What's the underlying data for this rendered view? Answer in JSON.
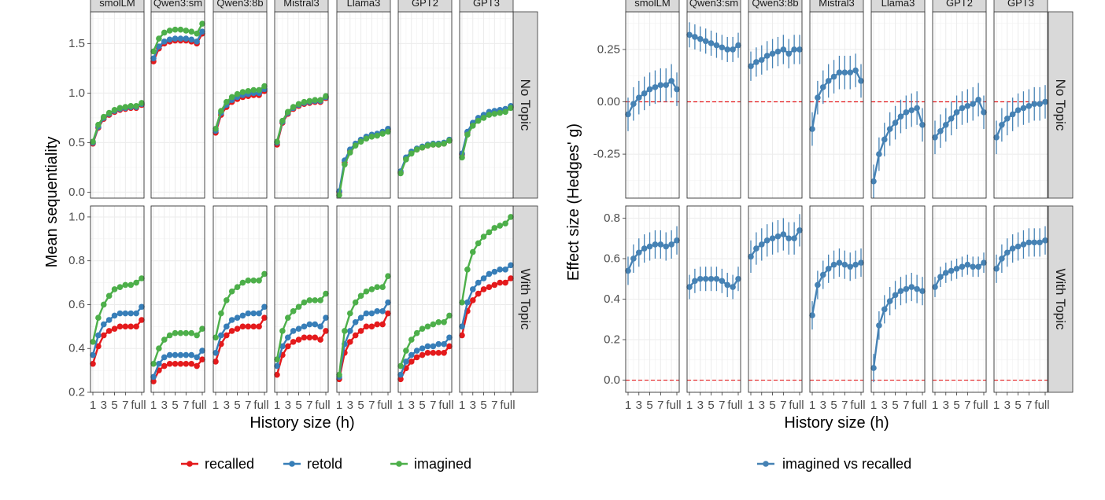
{
  "chart_data": [
    {
      "type": "line",
      "facet_columns": [
        "smolLM",
        "Qwen3:sm",
        "Qwen3:8b",
        "Mistral3",
        "Llama3",
        "GPT2",
        "GPT3"
      ],
      "facet_rows": [
        "No Topic",
        "With Topic"
      ],
      "xlabel": "History size (h)",
      "ylabel": "Mean sequentiality",
      "x_ticks": [
        "1",
        "3",
        "5",
        "7",
        "full"
      ],
      "row_ylim": [
        [
          -0.06,
          1.82
        ],
        [
          0.2,
          1.05
        ]
      ],
      "row_yticks": [
        [
          "0.0",
          "0.5",
          "1.0",
          "1.5"
        ],
        [
          "0.2",
          "0.4",
          "0.6",
          "0.8",
          "1.0"
        ]
      ],
      "series_colors": {
        "recalled": "#E41A1C",
        "retold": "#377EB8",
        "imagined": "#4DAF4A"
      },
      "legend": {
        "position": "bottom",
        "entries": [
          "recalled",
          "retold",
          "imagined"
        ]
      },
      "panels": [
        [
          {
            "recalled": [
              0.49,
              0.65,
              0.74,
              0.78,
              0.81,
              0.83,
              0.84,
              0.85,
              0.85,
              0.88
            ],
            "retold": [
              0.5,
              0.66,
              0.75,
              0.79,
              0.82,
              0.84,
              0.85,
              0.86,
              0.86,
              0.89
            ],
            "imagined": [
              0.51,
              0.68,
              0.76,
              0.8,
              0.83,
              0.85,
              0.86,
              0.87,
              0.87,
              0.9
            ]
          },
          {
            "recalled": [
              1.32,
              1.45,
              1.5,
              1.52,
              1.53,
              1.53,
              1.53,
              1.52,
              1.5,
              1.6
            ],
            "retold": [
              1.35,
              1.47,
              1.52,
              1.54,
              1.55,
              1.55,
              1.55,
              1.54,
              1.52,
              1.62
            ],
            "imagined": [
              1.42,
              1.55,
              1.61,
              1.63,
              1.64,
              1.64,
              1.63,
              1.62,
              1.6,
              1.7
            ]
          },
          {
            "recalled": [
              0.6,
              0.78,
              0.86,
              0.91,
              0.94,
              0.96,
              0.97,
              0.98,
              0.98,
              1.02
            ],
            "retold": [
              0.62,
              0.8,
              0.88,
              0.93,
              0.96,
              0.98,
              0.99,
              1.0,
              1.0,
              1.04
            ],
            "imagined": [
              0.64,
              0.82,
              0.91,
              0.96,
              0.99,
              1.01,
              1.02,
              1.03,
              1.03,
              1.07
            ]
          },
          {
            "recalled": [
              0.48,
              0.7,
              0.79,
              0.84,
              0.87,
              0.89,
              0.9,
              0.91,
              0.91,
              0.95
            ],
            "retold": [
              0.5,
              0.71,
              0.8,
              0.85,
              0.88,
              0.9,
              0.91,
              0.92,
              0.92,
              0.96
            ],
            "imagined": [
              0.51,
              0.72,
              0.81,
              0.86,
              0.89,
              0.91,
              0.92,
              0.93,
              0.93,
              0.97
            ]
          },
          {
            "recalled": [
              0.0,
              0.3,
              0.42,
              0.48,
              0.52,
              0.55,
              0.57,
              0.58,
              0.6,
              0.63
            ],
            "retold": [
              0.01,
              0.32,
              0.43,
              0.49,
              0.53,
              0.56,
              0.58,
              0.59,
              0.61,
              0.64
            ],
            "imagined": [
              -0.03,
              0.28,
              0.4,
              0.47,
              0.51,
              0.54,
              0.56,
              0.57,
              0.59,
              0.61
            ]
          },
          {
            "recalled": [
              0.2,
              0.34,
              0.4,
              0.43,
              0.45,
              0.47,
              0.48,
              0.48,
              0.49,
              0.52
            ],
            "retold": [
              0.21,
              0.35,
              0.41,
              0.44,
              0.46,
              0.48,
              0.49,
              0.49,
              0.5,
              0.53
            ],
            "imagined": [
              0.19,
              0.33,
              0.39,
              0.43,
              0.45,
              0.47,
              0.48,
              0.48,
              0.49,
              0.52
            ]
          },
          {
            "recalled": [
              0.38,
              0.6,
              0.69,
              0.74,
              0.77,
              0.8,
              0.81,
              0.82,
              0.83,
              0.86
            ],
            "retold": [
              0.39,
              0.61,
              0.7,
              0.75,
              0.78,
              0.81,
              0.82,
              0.83,
              0.84,
              0.87
            ],
            "imagined": [
              0.35,
              0.58,
              0.67,
              0.72,
              0.75,
              0.78,
              0.79,
              0.8,
              0.81,
              0.85
            ]
          }
        ],
        [
          {
            "recalled": [
              0.33,
              0.41,
              0.46,
              0.48,
              0.49,
              0.5,
              0.5,
              0.5,
              0.5,
              0.53
            ],
            "retold": [
              0.37,
              0.46,
              0.51,
              0.53,
              0.55,
              0.56,
              0.56,
              0.56,
              0.56,
              0.59
            ],
            "imagined": [
              0.43,
              0.54,
              0.6,
              0.64,
              0.67,
              0.68,
              0.69,
              0.69,
              0.7,
              0.72
            ]
          },
          {
            "recalled": [
              0.25,
              0.3,
              0.32,
              0.33,
              0.33,
              0.33,
              0.33,
              0.33,
              0.32,
              0.35
            ],
            "retold": [
              0.27,
              0.33,
              0.36,
              0.37,
              0.37,
              0.37,
              0.37,
              0.37,
              0.36,
              0.39
            ],
            "imagined": [
              0.33,
              0.4,
              0.44,
              0.46,
              0.47,
              0.47,
              0.47,
              0.47,
              0.46,
              0.49
            ]
          },
          {
            "recalled": [
              0.34,
              0.42,
              0.46,
              0.48,
              0.49,
              0.5,
              0.5,
              0.5,
              0.5,
              0.54
            ],
            "retold": [
              0.38,
              0.46,
              0.5,
              0.53,
              0.54,
              0.55,
              0.56,
              0.56,
              0.56,
              0.59
            ],
            "imagined": [
              0.45,
              0.56,
              0.62,
              0.66,
              0.68,
              0.7,
              0.71,
              0.71,
              0.71,
              0.74
            ]
          },
          {
            "recalled": [
              0.28,
              0.37,
              0.41,
              0.43,
              0.44,
              0.45,
              0.45,
              0.45,
              0.44,
              0.48
            ],
            "retold": [
              0.32,
              0.41,
              0.45,
              0.48,
              0.49,
              0.5,
              0.51,
              0.51,
              0.5,
              0.54
            ],
            "imagined": [
              0.35,
              0.48,
              0.54,
              0.57,
              0.59,
              0.61,
              0.62,
              0.62,
              0.62,
              0.65
            ]
          },
          {
            "recalled": [
              0.26,
              0.38,
              0.43,
              0.46,
              0.48,
              0.5,
              0.5,
              0.51,
              0.51,
              0.56
            ],
            "retold": [
              0.27,
              0.42,
              0.48,
              0.52,
              0.54,
              0.56,
              0.56,
              0.57,
              0.57,
              0.61
            ],
            "imagined": [
              0.28,
              0.48,
              0.56,
              0.61,
              0.64,
              0.66,
              0.67,
              0.68,
              0.68,
              0.73
            ]
          },
          {
            "recalled": [
              0.26,
              0.31,
              0.34,
              0.36,
              0.37,
              0.38,
              0.38,
              0.38,
              0.38,
              0.41
            ],
            "retold": [
              0.28,
              0.34,
              0.37,
              0.39,
              0.4,
              0.41,
              0.41,
              0.42,
              0.42,
              0.45
            ],
            "imagined": [
              0.32,
              0.39,
              0.44,
              0.47,
              0.49,
              0.5,
              0.51,
              0.52,
              0.52,
              0.55
            ]
          },
          {
            "recalled": [
              0.46,
              0.57,
              0.62,
              0.65,
              0.67,
              0.68,
              0.69,
              0.7,
              0.7,
              0.72
            ],
            "retold": [
              0.5,
              0.61,
              0.67,
              0.7,
              0.72,
              0.74,
              0.75,
              0.76,
              0.76,
              0.78
            ],
            "imagined": [
              0.61,
              0.76,
              0.84,
              0.88,
              0.91,
              0.93,
              0.95,
              0.96,
              0.97,
              1.0
            ]
          }
        ]
      ]
    },
    {
      "type": "line",
      "facet_columns": [
        "smolLM",
        "Qwen3:sm",
        "Qwen3:8b",
        "Mistral3",
        "Llama3",
        "GPT2",
        "GPT3"
      ],
      "facet_rows": [
        "No Topic",
        "With Topic"
      ],
      "xlabel": "History size (h)",
      "ylabel": "Effect size (Hedges' g)",
      "x_ticks": [
        "1",
        "3",
        "5",
        "7",
        "full"
      ],
      "row_ylim": [
        [
          -0.46,
          0.43
        ],
        [
          -0.06,
          0.86
        ]
      ],
      "row_yticks": [
        [
          "-0.25",
          "0.00",
          "0.25"
        ],
        [
          "0.0",
          "0.2",
          "0.4",
          "0.6",
          "0.8"
        ]
      ],
      "reference_line": {
        "y": 0,
        "style": "dashed",
        "color": "#E41A1C"
      },
      "series_colors": {
        "imagined vs recalled": "#4682B4"
      },
      "legend": {
        "position": "bottom",
        "entries": [
          "imagined vs recalled"
        ]
      },
      "panels": [
        [
          {
            "g": [
              -0.06,
              -0.01,
              0.02,
              0.04,
              0.06,
              0.07,
              0.08,
              0.08,
              0.1,
              0.06
            ],
            "err": 0.08
          },
          {
            "g": [
              0.32,
              0.31,
              0.3,
              0.29,
              0.28,
              0.27,
              0.26,
              0.25,
              0.25,
              0.27
            ],
            "err": 0.06
          },
          {
            "g": [
              0.17,
              0.19,
              0.2,
              0.22,
              0.23,
              0.24,
              0.25,
              0.23,
              0.25,
              0.25
            ],
            "err": 0.07
          },
          {
            "g": [
              -0.13,
              0.02,
              0.07,
              0.1,
              0.12,
              0.14,
              0.14,
              0.14,
              0.15,
              0.1
            ],
            "err": 0.08
          },
          {
            "g": [
              -0.38,
              -0.25,
              -0.18,
              -0.13,
              -0.1,
              -0.07,
              -0.05,
              -0.04,
              -0.03,
              -0.11
            ],
            "err": 0.08
          },
          {
            "g": [
              -0.17,
              -0.14,
              -0.11,
              -0.08,
              -0.05,
              -0.03,
              -0.02,
              -0.01,
              0.01,
              -0.05
            ],
            "err": 0.08
          },
          {
            "g": [
              -0.17,
              -0.11,
              -0.08,
              -0.06,
              -0.04,
              -0.03,
              -0.02,
              -0.01,
              -0.01,
              0.0
            ],
            "err": 0.08
          }
        ],
        [
          {
            "g": [
              0.54,
              0.6,
              0.63,
              0.65,
              0.66,
              0.67,
              0.67,
              0.66,
              0.67,
              0.69
            ],
            "err": 0.07
          },
          {
            "g": [
              0.46,
              0.49,
              0.5,
              0.5,
              0.5,
              0.5,
              0.49,
              0.47,
              0.46,
              0.5
            ],
            "err": 0.06
          },
          {
            "g": [
              0.61,
              0.65,
              0.67,
              0.69,
              0.7,
              0.71,
              0.72,
              0.7,
              0.7,
              0.74
            ],
            "err": 0.08
          },
          {
            "g": [
              0.32,
              0.47,
              0.52,
              0.55,
              0.57,
              0.58,
              0.57,
              0.56,
              0.57,
              0.58
            ],
            "err": 0.07
          },
          {
            "g": [
              0.06,
              0.27,
              0.35,
              0.39,
              0.42,
              0.44,
              0.45,
              0.46,
              0.45,
              0.44
            ],
            "err": 0.07
          },
          {
            "g": [
              0.46,
              0.51,
              0.53,
              0.54,
              0.55,
              0.56,
              0.57,
              0.56,
              0.56,
              0.58
            ],
            "err": 0.05
          },
          {
            "g": [
              0.55,
              0.6,
              0.63,
              0.65,
              0.66,
              0.67,
              0.68,
              0.68,
              0.68,
              0.69
            ],
            "err": 0.07
          }
        ]
      ]
    }
  ]
}
